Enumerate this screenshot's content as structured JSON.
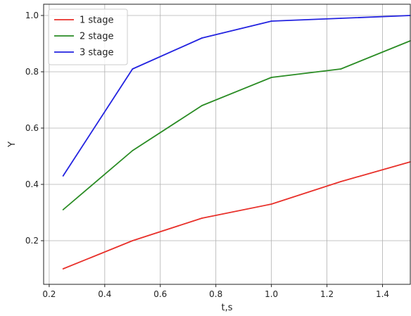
{
  "chart_data": {
    "type": "line",
    "title": "",
    "xlabel": "t,s",
    "ylabel": "Y",
    "xlim": [
      0.18,
      1.5
    ],
    "ylim": [
      0.045,
      1.04
    ],
    "xticks": [
      0.2,
      0.4,
      0.6,
      0.8,
      1.0,
      1.2,
      1.4
    ],
    "xtick_labels": [
      "0.2",
      "0.4",
      "0.6",
      "0.8",
      "1.0",
      "1.2",
      "1.4"
    ],
    "yticks": [
      0.2,
      0.4,
      0.6,
      0.8,
      1.0
    ],
    "ytick_labels": [
      "0.2",
      "0.4",
      "0.6",
      "0.8",
      "1.0"
    ],
    "grid": true,
    "legend_position": "top-left",
    "x": [
      0.25,
      0.5,
      0.75,
      1.0,
      1.25,
      1.5
    ],
    "series": [
      {
        "name": "1 stage",
        "color": "#e8302a",
        "values": [
          0.1,
          0.2,
          0.28,
          0.33,
          0.41,
          0.48
        ]
      },
      {
        "name": "2 stage",
        "color": "#2a8c24",
        "values": [
          0.31,
          0.52,
          0.68,
          0.78,
          0.81,
          0.91
        ]
      },
      {
        "name": "3 stage",
        "color": "#2323e0",
        "values": [
          0.43,
          0.81,
          0.92,
          0.98,
          0.99,
          1.0
        ]
      }
    ]
  }
}
